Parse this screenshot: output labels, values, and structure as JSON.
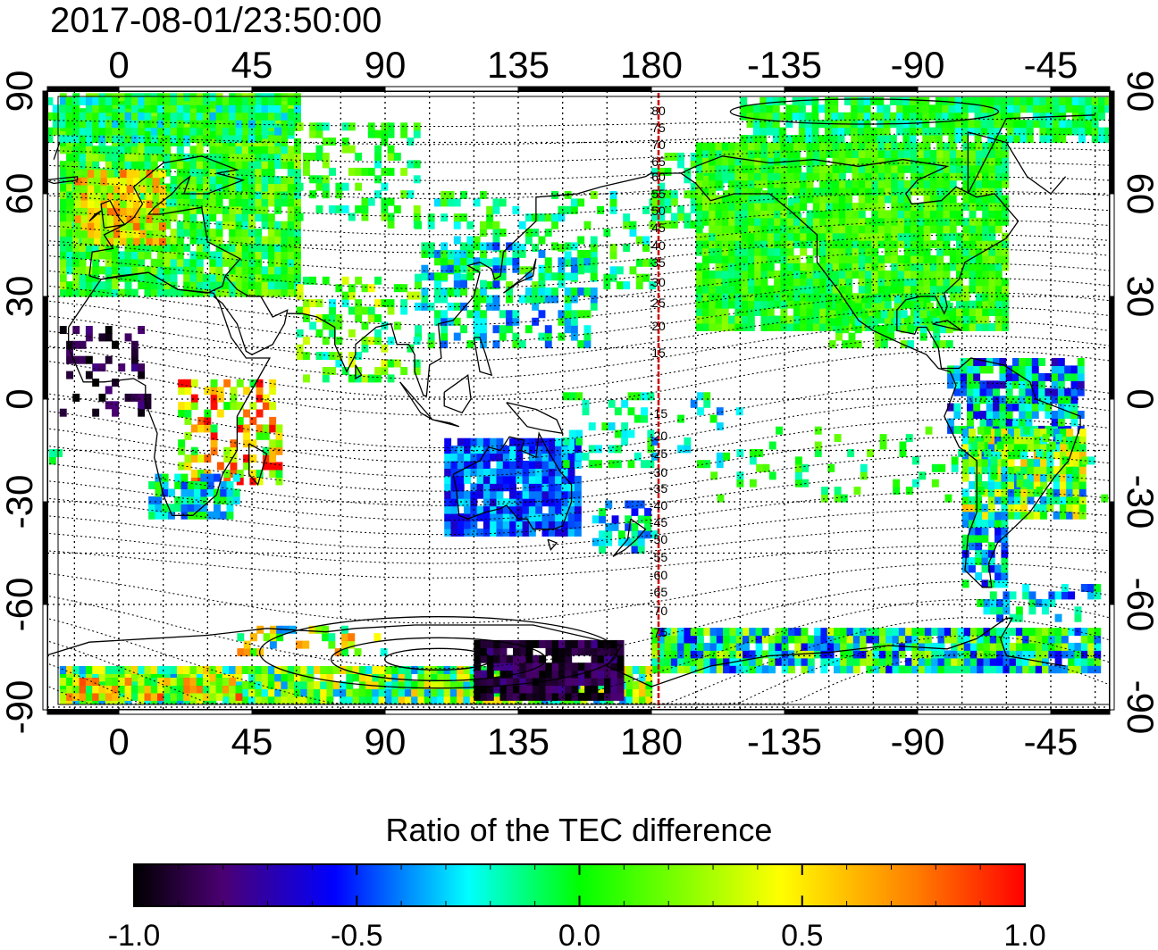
{
  "title": "2017-08-01/23:50:00",
  "map": {
    "projection": "equirectangular, centered near 105E, longitudes wrap at 180",
    "top_axis_ticks": [
      "0",
      "45",
      "90",
      "135",
      "180",
      "-135",
      "-90",
      "-45"
    ],
    "bottom_axis_ticks": [
      "0",
      "45",
      "90",
      "135",
      "180",
      "-135",
      "-90",
      "-45"
    ],
    "left_axis_ticks": [
      "90",
      "60",
      "30",
      "0",
      "-30",
      "-60",
      "-90"
    ],
    "right_axis_ticks": [
      "90",
      "60",
      "30",
      "0",
      "-30",
      "-60",
      "-90"
    ],
    "grid": "dotted, 15 deg spacing",
    "terminator_meridian_color": "#cc0000",
    "magnetic_latitude_labels": [
      "80",
      "75",
      "70",
      "65",
      "60",
      "55",
      "50",
      "45",
      "40",
      "35",
      "30",
      "25",
      "20",
      "15",
      "-15",
      "-20",
      "-25",
      "-30",
      "-35",
      "-40",
      "-45",
      "-50",
      "-55",
      "-60",
      "-65",
      "-70",
      "-75"
    ],
    "coastlines": "black continental outlines",
    "data_field": "Ratio of the TEC difference (color-coded pixels over land/GNSS coverage)"
  },
  "colorbar": {
    "title": "Ratio of the TEC difference",
    "min": -1.0,
    "max": 1.0,
    "tick_labels": [
      "-1.0",
      "-0.5",
      "0.0",
      "0.5",
      "1.0"
    ],
    "colors": [
      "#000000",
      "#4b0072",
      "#0000ff",
      "#00ffff",
      "#00ff00",
      "#ffff00",
      "#ff8000",
      "#ff0000"
    ]
  }
}
